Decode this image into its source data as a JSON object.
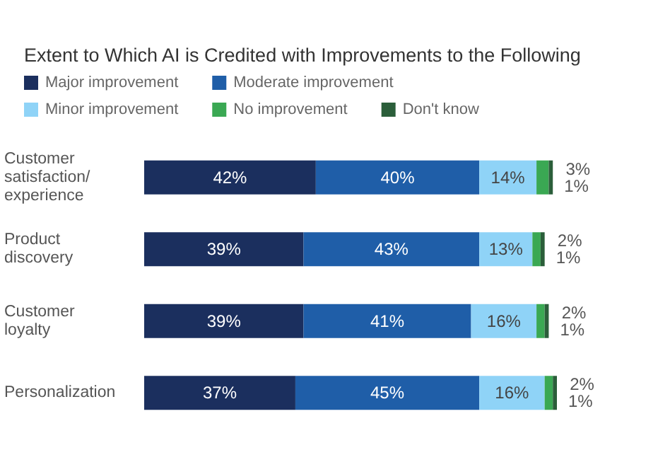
{
  "chart_data": {
    "type": "bar",
    "orientation": "horizontal",
    "stacked": true,
    "title": "Extent to Which AI is Credited with Improvements to the Following",
    "categories": [
      "Customer satisfaction/ experience",
      "Product discovery",
      "Customer loyalty",
      "Personalization"
    ],
    "series": [
      {
        "name": "Major improvement",
        "color": "#1b2f5e",
        "values": [
          42,
          39,
          39,
          37
        ],
        "value_labels": [
          "42%",
          "39%",
          "39%",
          "37%"
        ]
      },
      {
        "name": "Moderate improvement",
        "color": "#1f5ea8",
        "values": [
          40,
          43,
          41,
          45
        ],
        "value_labels": [
          "40%",
          "43%",
          "41%",
          "45%"
        ]
      },
      {
        "name": "Minor improvement",
        "color": "#8fd3f7",
        "values": [
          14,
          13,
          16,
          16
        ],
        "value_labels": [
          "14%",
          "13%",
          "16%",
          "16%"
        ]
      },
      {
        "name": "No improvement",
        "color": "#3aa853",
        "values": [
          3,
          2,
          2,
          2
        ],
        "value_labels": [
          "3%",
          "2%",
          "2%",
          "2%"
        ]
      },
      {
        "name": "Don't know",
        "color": "#2b5e3a",
        "values": [
          1,
          1,
          1,
          1
        ],
        "value_labels": [
          "1%",
          "1%",
          "1%",
          "1%"
        ]
      }
    ],
    "legend": "top left"
  }
}
